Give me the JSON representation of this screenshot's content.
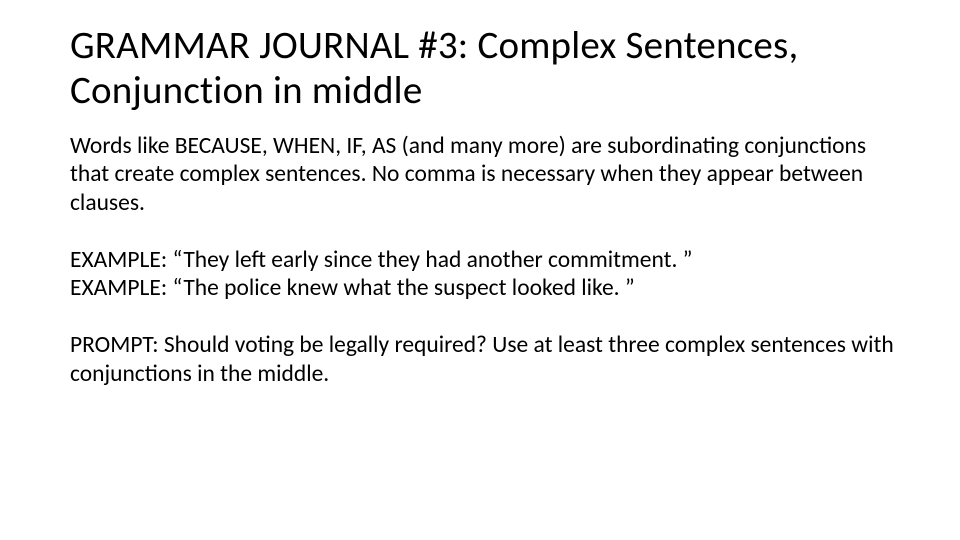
{
  "title": "GRAMMAR JOURNAL #3: Complex Sentences, Conjunction in middle",
  "intro": "Words like BECAUSE, WHEN, IF, AS (and many more) are subordinating conjunctions that create complex sentences. No comma is necessary when they appear between clauses.",
  "example1": "EXAMPLE: “They left early since they had another commitment. ”",
  "example2": "EXAMPLE: “The police knew what the suspect looked like. ”",
  "prompt": "PROMPT: Should voting be legally required? Use at least three complex sentences with conjunctions in the middle."
}
